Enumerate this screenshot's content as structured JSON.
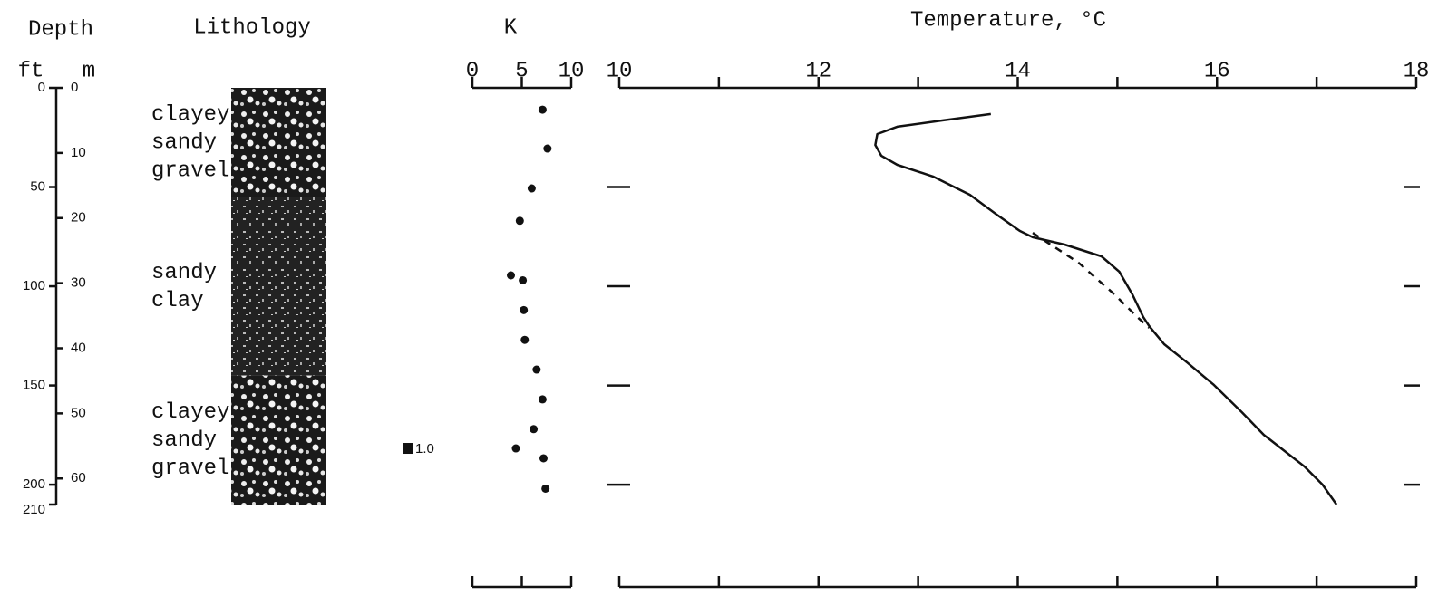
{
  "depth_axis": {
    "title": "Depth",
    "ft_label": "ft",
    "m_label": "m",
    "ftlim": [
      0,
      210
    ],
    "ftticks": [
      0,
      50,
      100,
      150,
      200,
      210
    ],
    "mlim": [
      0,
      64
    ],
    "mticks": [
      0,
      10,
      20,
      30,
      40,
      50,
      60
    ]
  },
  "lithology": {
    "title": "Lithology",
    "units": [
      {
        "lines": [
          "clayey",
          "sandy",
          "gravel"
        ],
        "top": 0,
        "bottom": 55
      },
      {
        "lines": [
          "sandy",
          "clay"
        ],
        "top": 55,
        "bottom": 145
      },
      {
        "lines": [
          "clayey",
          "sandy",
          "gravel"
        ],
        "top": 145,
        "bottom": 210
      }
    ]
  },
  "chart_data": [
    {
      "type": "scatter",
      "title": "K",
      "x": [
        7.1,
        7.6,
        6.0,
        4.8,
        3.9,
        5.1,
        5.2,
        5.3,
        6.5,
        7.1,
        6.2,
        4.4,
        7.2,
        7.4
      ],
      "values": [
        11,
        30.6,
        50.7,
        67,
        94.5,
        97,
        112,
        127,
        142,
        157,
        172,
        181.7,
        186.7,
        202
      ],
      "xlim": [
        0,
        10
      ],
      "xticks": [
        0,
        5,
        10
      ],
      "ylim": [
        0,
        210
      ],
      "y_inverted": true,
      "color": "#111",
      "annotation": {
        "text": "1.0",
        "depth": 181.7
      }
    },
    {
      "type": "line",
      "title": "Temperature, °C",
      "xlim": [
        10,
        18
      ],
      "xticks": [
        10,
        12,
        14,
        16,
        18
      ],
      "xminorticks": [
        11,
        13,
        15,
        17
      ],
      "ylim": [
        0,
        210
      ],
      "y_inverted": true,
      "depth_marks": [
        50,
        100,
        150,
        200
      ],
      "series": [
        {
          "color": "#111",
          "dashed": false,
          "x": [
            13.73,
            13.25,
            12.79,
            12.59,
            12.57,
            12.63,
            12.79,
            13.15,
            13.52,
            13.79,
            14.02,
            14.15,
            14.47,
            14.84,
            15.02,
            15.15,
            15.26,
            15.32,
            15.47,
            15.7,
            15.97,
            16.25,
            16.47,
            16.88,
            17.06,
            17.2
          ],
          "values": [
            13.2,
            16.4,
            19.6,
            23.3,
            28.8,
            34.2,
            38.8,
            44.7,
            53.9,
            63.9,
            72.1,
            75.3,
            79.0,
            84.9,
            92.7,
            104.1,
            115.5,
            120.1,
            129.2,
            138.4,
            149.8,
            163.5,
            174.9,
            190.9,
            200.0,
            210
          ]
        },
        {
          "color": "#111",
          "dashed": true,
          "x": [
            14.15,
            14.61,
            14.97,
            15.2,
            15.32
          ],
          "values": [
            73.1,
            88.1,
            104.1,
            115.5,
            121.0
          ]
        }
      ]
    }
  ]
}
